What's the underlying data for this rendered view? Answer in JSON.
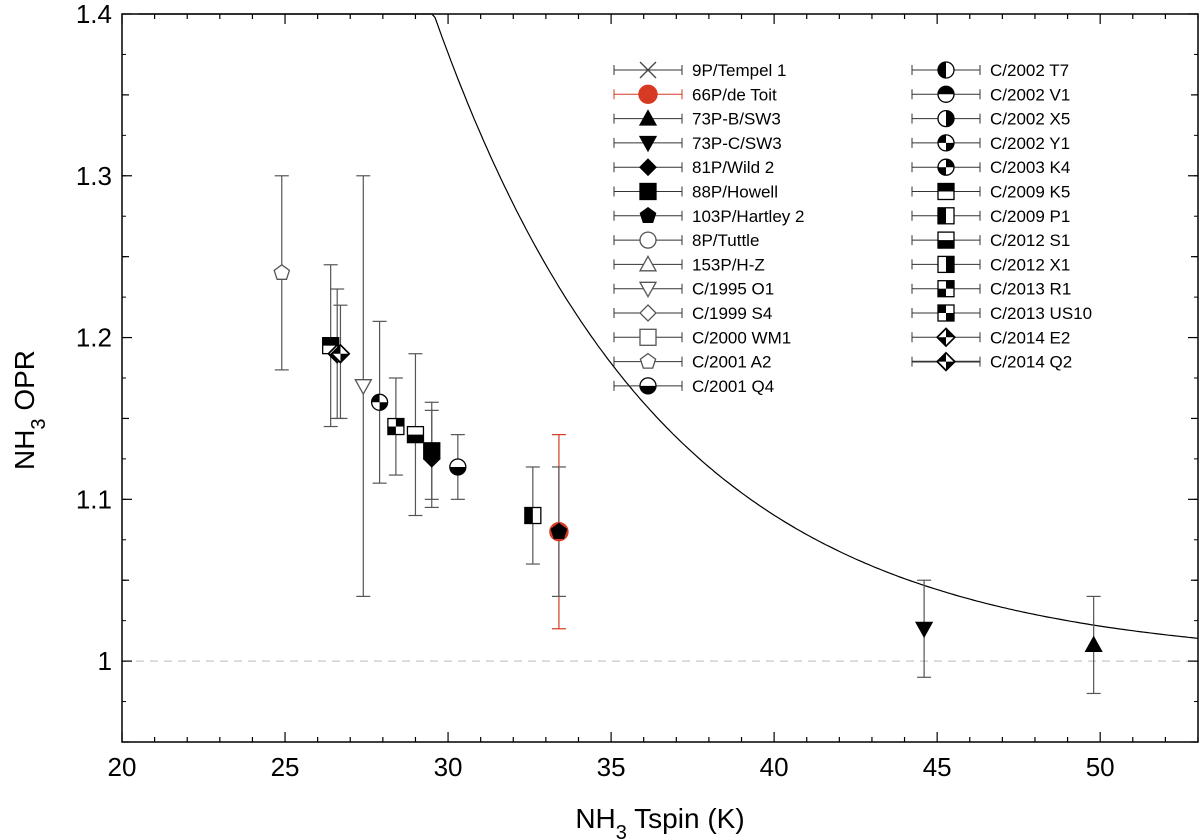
{
  "chart_data": {
    "type": "scatter",
    "xlabel": {
      "prefix": "NH",
      "sub": "3",
      "suffix": " Tspin (K)"
    },
    "ylabel": {
      "prefix": "NH",
      "sub": "3",
      "suffix": " OPR"
    },
    "xlim": [
      20,
      53
    ],
    "ylim": [
      0.95,
      1.4
    ],
    "xticks": [
      20,
      25,
      30,
      35,
      40,
      45,
      50
    ],
    "yticks": [
      1,
      1.1,
      1.2,
      1.3,
      1.4
    ],
    "ytick_labels": [
      "1",
      "1.1",
      "1.2",
      "1.3",
      "1.4"
    ],
    "reference_line": {
      "y": 1.0,
      "style": "dashed",
      "color": "#c8c8c8"
    },
    "curve": {
      "description": "theoretical OPR vs Tspin",
      "x_range": [
        20.5,
        53
      ]
    },
    "series": [
      {
        "name": "9P/Tempel 1",
        "marker": "cross",
        "color": "#444444",
        "points": []
      },
      {
        "name": "66P/de Toit",
        "marker": "circle",
        "color": "#d63a22",
        "points": [
          {
            "x": 33.4,
            "y": 1.08,
            "ylo": 1.02,
            "yhi": 1.14,
            "xlo": 33.4,
            "xhi": 33.4
          }
        ]
      },
      {
        "name": "73P-B/SW3",
        "marker": "triangle-up-filled",
        "color": "#000000",
        "points": [
          {
            "x": 49.8,
            "y": 1.01,
            "ylo": 0.98,
            "yhi": 1.04
          }
        ]
      },
      {
        "name": "73P-C/SW3",
        "marker": "triangle-down-filled",
        "color": "#000000",
        "points": [
          {
            "x": 44.6,
            "y": 1.02,
            "ylo": 0.99,
            "yhi": 1.05
          }
        ]
      },
      {
        "name": "81P/Wild 2",
        "marker": "diamond-filled",
        "color": "#000000",
        "points": [
          {
            "x": 29.5,
            "y": 1.125,
            "ylo": 1.095,
            "yhi": 1.155
          }
        ]
      },
      {
        "name": "88P/Howell",
        "marker": "square-filled",
        "color": "#000000",
        "points": [
          {
            "x": 29.5,
            "y": 1.13,
            "ylo": 1.1,
            "yhi": 1.16
          }
        ]
      },
      {
        "name": "103P/Hartley 2",
        "marker": "pentagon-filled",
        "color": "#000000",
        "points": [
          {
            "x": 33.4,
            "y": 1.08,
            "ylo": 1.04,
            "yhi": 1.12
          }
        ]
      },
      {
        "name": "8P/Tuttle",
        "marker": "circle-open",
        "color": "#555555",
        "points": []
      },
      {
        "name": "153P/H-Z",
        "marker": "triangle-up-open",
        "color": "#555555",
        "points": []
      },
      {
        "name": "C/1995 O1",
        "marker": "triangle-down-open",
        "color": "#555555",
        "points": [
          {
            "x": 27.4,
            "y": 1.17,
            "ylo": 1.04,
            "yhi": 1.3
          }
        ]
      },
      {
        "name": "C/1999 S4",
        "marker": "diamond-open",
        "color": "#555555",
        "points": []
      },
      {
        "name": "C/2000 WM1",
        "marker": "square-open",
        "color": "#555555",
        "points": []
      },
      {
        "name": "C/2001 A2",
        "marker": "pentagon-open",
        "color": "#555555",
        "points": [
          {
            "x": 24.9,
            "y": 1.24,
            "ylo": 1.18,
            "yhi": 1.3
          }
        ]
      },
      {
        "name": "C/2001 Q4",
        "marker": "circle-bottom-half",
        "color": "#000000",
        "points": [
          {
            "x": 30.3,
            "y": 1.12,
            "ylo": 1.1,
            "yhi": 1.14
          }
        ]
      },
      {
        "name": "C/2002 T7",
        "marker": "circle-left-half",
        "color": "#000000",
        "points": []
      },
      {
        "name": "C/2002 V1",
        "marker": "circle-top-half",
        "color": "#000000",
        "points": []
      },
      {
        "name": "C/2002 X5",
        "marker": "circle-right-half",
        "color": "#000000",
        "points": []
      },
      {
        "name": "C/2002 Y1",
        "marker": "circle-quarters-a",
        "color": "#000000",
        "points": [
          {
            "x": 27.9,
            "y": 1.16,
            "ylo": 1.11,
            "yhi": 1.21
          }
        ]
      },
      {
        "name": "C/2003 K4",
        "marker": "circle-quarters-b",
        "color": "#000000",
        "points": []
      },
      {
        "name": "C/2009 K5",
        "marker": "square-top-half",
        "color": "#000000",
        "points": [
          {
            "x": 26.4,
            "y": 1.195,
            "ylo": 1.145,
            "yhi": 1.245
          }
        ]
      },
      {
        "name": "C/2009 P1",
        "marker": "square-left-half",
        "color": "#000000",
        "points": [
          {
            "x": 32.6,
            "y": 1.09,
            "ylo": 1.06,
            "yhi": 1.12
          }
        ]
      },
      {
        "name": "C/2012 S1",
        "marker": "square-bottom-half",
        "color": "#000000",
        "points": [
          {
            "x": 29.0,
            "y": 1.14,
            "ylo": 1.09,
            "yhi": 1.19
          }
        ]
      },
      {
        "name": "C/2012 X1",
        "marker": "square-right-half",
        "color": "#000000",
        "points": []
      },
      {
        "name": "C/2013 R1",
        "marker": "square-checker-a",
        "color": "#000000",
        "points": [
          {
            "x": 28.4,
            "y": 1.145,
            "ylo": 1.115,
            "yhi": 1.175
          }
        ]
      },
      {
        "name": "C/2013 US10",
        "marker": "square-checker-b",
        "color": "#000000",
        "points": []
      },
      {
        "name": "C/2014 E2",
        "marker": "diamond-half-a",
        "color": "#000000",
        "points": [
          {
            "x": 26.6,
            "y": 1.19,
            "ylo": 1.15,
            "yhi": 1.23
          }
        ]
      },
      {
        "name": "C/2014 Q2",
        "marker": "diamond-half-b",
        "color": "#000000",
        "points": [
          {
            "x": 26.7,
            "y": 1.19,
            "ylo": 1.15,
            "yhi": 1.22
          }
        ]
      }
    ]
  }
}
